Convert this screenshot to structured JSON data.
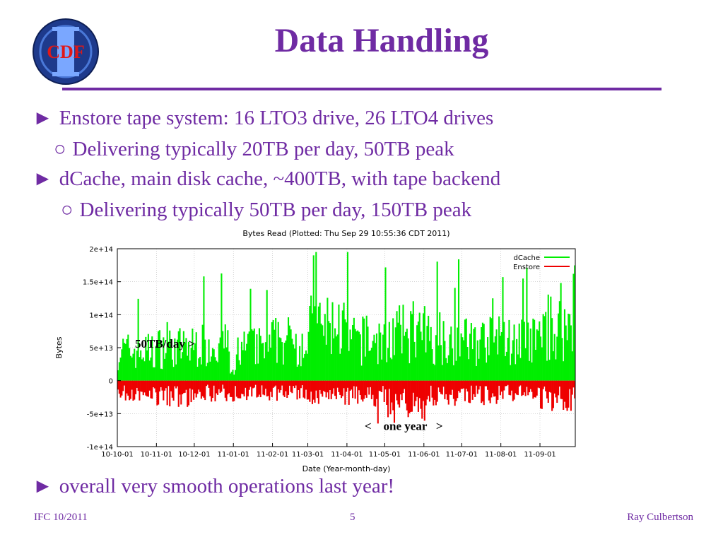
{
  "slide": {
    "logo_text": "CDF",
    "title": "Data Handling",
    "bullets": [
      {
        "marker": "►",
        "text": "Enstore tape system: 16 LTO3 drive, 26 LTO4 drives"
      },
      {
        "marker": "○",
        "text": "Delivering typically 20TB per day, 50TB peak"
      },
      {
        "marker": "►",
        "text": "dCache, main disk cache, ~400TB, with tape backend"
      },
      {
        "marker": "○",
        "text": "Delivering typically 50TB per day, 150TB peak"
      },
      {
        "marker": "►",
        "text": "overall very smooth operations last year!"
      }
    ],
    "footer": {
      "left": "IFC 10/2011",
      "center": "5",
      "right": "Ray Culbertson"
    },
    "colors": {
      "title": "#6f2ba3",
      "dcache": "#00ee00",
      "enstore": "#ee0000"
    }
  },
  "chart_data": {
    "type": "bar",
    "title": "Bytes Read (Plotted: Thu Sep 29 10:55:36 CDT 2011)",
    "xlabel": "Date (Year-month-day)",
    "ylabel": "Bytes",
    "ylim": [
      -100000000000000.0,
      200000000000000.0
    ],
    "yticks": [
      {
        "value": 200000000000000.0,
        "label": "2e+14"
      },
      {
        "value": 150000000000000.0,
        "label": "1.5e+14"
      },
      {
        "value": 100000000000000.0,
        "label": "1e+14"
      },
      {
        "value": 50000000000000.0,
        "label": "5e+13"
      },
      {
        "value": 0,
        "label": "0"
      },
      {
        "value": -50000000000000.0,
        "label": "-5e+13"
      },
      {
        "value": -100000000000000.0,
        "label": "-1e+14"
      }
    ],
    "xrange": [
      "2010-10-01",
      "2011-09-29"
    ],
    "xticks": [
      "10-10-01",
      "10-11-01",
      "10-12-01",
      "11-01-01",
      "11-02-01",
      "11-03-01",
      "11-04-01",
      "11-05-01",
      "11-06-01",
      "11-07-01",
      "11-08-01",
      "11-09-01"
    ],
    "xtick_dates": [
      "2010-10-01",
      "2010-11-01",
      "2010-12-01",
      "2011-01-01",
      "2011-02-01",
      "2011-03-01",
      "2011-04-01",
      "2011-05-01",
      "2011-06-01",
      "2011-07-01",
      "2011-08-01",
      "2011-09-01"
    ],
    "grid": true,
    "legend": "top-right",
    "series": [
      {
        "name": "dCache",
        "color": "#00ee00",
        "monthly_values": [
          45000000000000.0,
          50000000000000.0,
          55000000000000.0,
          50000000000000.0,
          60000000000000.0,
          80000000000000.0,
          60000000000000.0,
          70000000000000.0,
          65000000000000.0,
          60000000000000.0,
          60000000000000.0,
          80000000000000.0
        ],
        "peaks": [
          {
            "x": "2011-03-05",
            "value": 190000000000000.0
          },
          {
            "x": "2011-09-27",
            "value": 162000000000000.0
          }
        ]
      },
      {
        "name": "Enstore",
        "color": "#ee0000",
        "monthly_values": [
          -20000000000000.0,
          -25000000000000.0,
          -20000000000000.0,
          -20000000000000.0,
          -20000000000000.0,
          -25000000000000.0,
          -25000000000000.0,
          -40000000000000.0,
          -25000000000000.0,
          -25000000000000.0,
          -20000000000000.0,
          -30000000000000.0
        ],
        "peaks": [
          {
            "x": "2011-04-25",
            "value": -65000000000000.0
          }
        ]
      }
    ],
    "annotations": [
      {
        "text": "50TB/day >",
        "x": "2010-10-15",
        "y": 50000000000000.0
      },
      {
        "text": "<    one year   >",
        "x": "2011-04-15",
        "y": -75000000000000.0
      }
    ]
  }
}
